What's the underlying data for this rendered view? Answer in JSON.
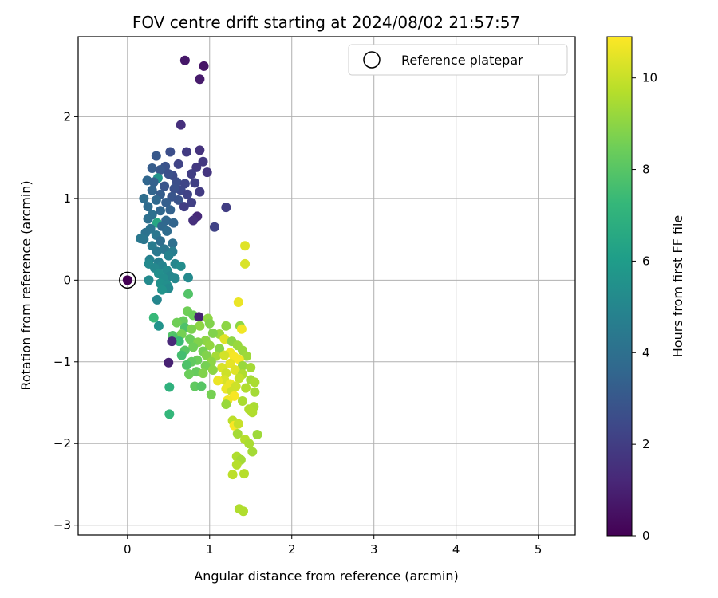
{
  "chart_data": {
    "type": "scatter",
    "title": "FOV centre drift starting at 2024/08/02 21:57:57",
    "xlabel": "Angular distance from reference (arcmin)",
    "ylabel": "Rotation from reference (arcmin)",
    "xlim": [
      -0.6,
      5.45
    ],
    "ylim": [
      -3.12,
      2.98
    ],
    "xticks": [
      "0",
      "1",
      "2",
      "3",
      "4",
      "5"
    ],
    "yticks": [
      "−3",
      "−2",
      "−1",
      "0",
      "1",
      "2"
    ],
    "grid": true,
    "legend": {
      "placement": "top-right",
      "entries": [
        "Reference platepar"
      ]
    },
    "reference_point": {
      "x": 0,
      "y": 0
    },
    "colorbar": {
      "label": "Hours from first FF file",
      "range": [
        0,
        10.9
      ],
      "ticks": [
        "0",
        "2",
        "4",
        "6",
        "8",
        "10"
      ],
      "colormap": "viridis"
    },
    "points": [
      [
        0.7,
        2.69,
        0.7
      ],
      [
        0.93,
        2.62,
        0.6
      ],
      [
        0.88,
        2.46,
        0.8
      ],
      [
        0.65,
        1.9,
        1.5
      ],
      [
        0.88,
        1.59,
        1.6
      ],
      [
        0.72,
        1.57,
        1.9
      ],
      [
        0.52,
        1.57,
        2.6
      ],
      [
        0.35,
        1.52,
        3.0
      ],
      [
        0.92,
        1.45,
        1.8
      ],
      [
        0.46,
        1.39,
        2.8
      ],
      [
        0.84,
        1.38,
        1.8
      ],
      [
        0.62,
        1.42,
        2.2
      ],
      [
        0.3,
        1.37,
        3.2
      ],
      [
        0.4,
        1.35,
        3.0
      ],
      [
        0.97,
        1.32,
        1.7
      ],
      [
        0.78,
        1.3,
        2.0
      ],
      [
        0.55,
        1.28,
        2.5
      ],
      [
        0.5,
        1.3,
        2.7
      ],
      [
        0.37,
        1.25,
        5.6
      ],
      [
        0.24,
        1.22,
        3.6
      ],
      [
        0.32,
        1.2,
        3.4
      ],
      [
        0.6,
        1.2,
        2.6
      ],
      [
        0.7,
        1.18,
        2.3
      ],
      [
        0.82,
        1.19,
        2.1
      ],
      [
        0.65,
        1.1,
        2.4
      ],
      [
        0.45,
        1.15,
        2.9
      ],
      [
        0.57,
        1.12,
        2.7
      ],
      [
        0.3,
        1.1,
        3.5
      ],
      [
        0.73,
        1.05,
        2.2
      ],
      [
        0.88,
        1.08,
        1.9
      ],
      [
        0.4,
        1.05,
        3.2
      ],
      [
        0.54,
        1.02,
        2.9
      ],
      [
        0.62,
        0.98,
        2.8
      ],
      [
        0.2,
        1.0,
        3.9
      ],
      [
        0.35,
        0.98,
        3.7
      ],
      [
        0.47,
        0.95,
        3.3
      ],
      [
        0.78,
        0.95,
        2.1
      ],
      [
        0.69,
        0.9,
        2.0
      ],
      [
        1.2,
        0.89,
        2.0
      ],
      [
        0.25,
        0.9,
        3.8
      ],
      [
        0.4,
        0.85,
        3.6
      ],
      [
        0.52,
        0.86,
        3.4
      ],
      [
        0.3,
        0.8,
        4.0
      ],
      [
        0.85,
        0.78,
        1.3
      ],
      [
        0.8,
        0.73,
        1.5
      ],
      [
        0.47,
        0.73,
        3.6
      ],
      [
        0.25,
        0.75,
        4.0
      ],
      [
        0.36,
        0.7,
        6.5
      ],
      [
        0.56,
        0.7,
        3.5
      ],
      [
        0.42,
        0.66,
        3.7
      ],
      [
        1.06,
        0.65,
        2.2
      ],
      [
        0.28,
        0.63,
        4.2
      ],
      [
        0.48,
        0.6,
        3.8
      ],
      [
        0.22,
        0.58,
        4.1
      ],
      [
        0.35,
        0.55,
        4.3
      ],
      [
        0.16,
        0.51,
        4.4
      ],
      [
        0.2,
        0.5,
        4.3
      ],
      [
        0.4,
        0.48,
        3.9
      ],
      [
        0.55,
        0.45,
        4.0
      ],
      [
        0.3,
        0.42,
        4.5
      ],
      [
        0.45,
        0.38,
        4.3
      ],
      [
        0.55,
        0.35,
        4.6
      ],
      [
        0.36,
        0.35,
        4.4
      ],
      [
        0.5,
        0.3,
        4.8
      ],
      [
        0.27,
        0.25,
        4.8
      ],
      [
        0.38,
        0.22,
        4.7
      ],
      [
        0.26,
        0.2,
        5.2
      ],
      [
        0.42,
        0.18,
        4.9
      ],
      [
        0.58,
        0.2,
        5.0
      ],
      [
        0.65,
        0.17,
        5.3
      ],
      [
        0.33,
        0.15,
        5.1
      ],
      [
        0.48,
        0.12,
        5.2
      ],
      [
        0.38,
        0.08,
        5.4
      ],
      [
        0.52,
        0.05,
        5.0
      ],
      [
        0.44,
        0.02,
        5.3
      ],
      [
        0.26,
        0.0,
        5.2
      ],
      [
        0.58,
        0.02,
        5.1
      ],
      [
        0.74,
        0.03,
        5.2
      ],
      [
        0.4,
        -0.04,
        5.5
      ],
      [
        0.48,
        -0.06,
        5.4
      ],
      [
        0.5,
        -0.1,
        5.2
      ],
      [
        0.42,
        -0.12,
        5.6
      ],
      [
        0.36,
        -0.24,
        5.0
      ],
      [
        1.43,
        0.42,
        10.4
      ],
      [
        1.43,
        0.2,
        10.3
      ],
      [
        1.35,
        -0.27,
        10.6
      ],
      [
        0.0,
        0.0,
        0.0
      ],
      [
        0.74,
        -0.17,
        7.9
      ],
      [
        0.73,
        -0.38,
        8.5
      ],
      [
        0.8,
        -0.43,
        8.4
      ],
      [
        0.87,
        -0.45,
        1.0
      ],
      [
        0.32,
        -0.46,
        7.3
      ],
      [
        0.98,
        -0.47,
        9.0
      ],
      [
        0.68,
        -0.5,
        8.3
      ],
      [
        0.6,
        -0.52,
        8.5
      ],
      [
        1.0,
        -0.53,
        8.8
      ],
      [
        0.88,
        -0.56,
        9.0
      ],
      [
        0.7,
        -0.58,
        7.8
      ],
      [
        0.38,
        -0.56,
        5.6
      ],
      [
        0.78,
        -0.6,
        8.7
      ],
      [
        1.2,
        -0.56,
        9.0
      ],
      [
        1.37,
        -0.56,
        9.0
      ],
      [
        1.39,
        -0.6,
        10.7
      ],
      [
        1.12,
        -0.66,
        9.2
      ],
      [
        1.04,
        -0.65,
        8.8
      ],
      [
        0.66,
        -0.66,
        8.6
      ],
      [
        0.55,
        -0.68,
        7.9
      ],
      [
        0.57,
        -0.72,
        7.8
      ],
      [
        0.76,
        -0.72,
        8.4
      ],
      [
        0.95,
        -0.74,
        9.0
      ],
      [
        0.63,
        -0.75,
        7.4
      ],
      [
        0.86,
        -0.76,
        8.8
      ],
      [
        1.18,
        -0.72,
        10.4
      ],
      [
        1.27,
        -0.75,
        9.0
      ],
      [
        1.34,
        -0.8,
        9.2
      ],
      [
        0.54,
        -0.75,
        1.2
      ],
      [
        1.0,
        -0.8,
        9.1
      ],
      [
        0.8,
        -0.82,
        8.5
      ],
      [
        0.7,
        -0.86,
        8.0
      ],
      [
        0.92,
        -0.87,
        8.6
      ],
      [
        1.12,
        -0.84,
        8.9
      ],
      [
        1.25,
        -0.89,
        10.7
      ],
      [
        1.4,
        -0.86,
        9.2
      ],
      [
        0.96,
        -0.92,
        8.8
      ],
      [
        1.08,
        -0.93,
        9.4
      ],
      [
        0.66,
        -0.92,
        7.6
      ],
      [
        1.18,
        -0.92,
        10.2
      ],
      [
        1.3,
        -0.94,
        10.8
      ],
      [
        1.45,
        -0.93,
        9.3
      ],
      [
        1.36,
        -0.97,
        10.8
      ],
      [
        0.85,
        -0.98,
        8.4
      ],
      [
        0.78,
        -1.0,
        8.2
      ],
      [
        1.02,
        -1.0,
        9.0
      ],
      [
        1.25,
        -1.02,
        10.5
      ],
      [
        0.72,
        -1.04,
        7.8
      ],
      [
        0.5,
        -1.01,
        1.0
      ],
      [
        0.95,
        -1.05,
        8.6
      ],
      [
        1.15,
        -1.07,
        10.3
      ],
      [
        1.4,
        -1.05,
        9.2
      ],
      [
        1.5,
        -1.07,
        9.4
      ],
      [
        1.04,
        -1.1,
        9.0
      ],
      [
        0.84,
        -1.12,
        8.3
      ],
      [
        1.31,
        -1.1,
        10.4
      ],
      [
        0.75,
        -1.15,
        8.4
      ],
      [
        1.2,
        -1.14,
        10.1
      ],
      [
        1.4,
        -1.15,
        9.6
      ],
      [
        0.92,
        -1.14,
        8.8
      ],
      [
        1.36,
        -1.2,
        9.9
      ],
      [
        1.18,
        -1.22,
        10.3
      ],
      [
        1.1,
        -1.23,
        10.6
      ],
      [
        1.5,
        -1.22,
        9.4
      ],
      [
        1.55,
        -1.25,
        9.5
      ],
      [
        1.25,
        -1.27,
        10.6
      ],
      [
        0.82,
        -1.3,
        8.2
      ],
      [
        0.9,
        -1.3,
        8.0
      ],
      [
        1.32,
        -1.3,
        10.1
      ],
      [
        1.2,
        -1.33,
        10.6
      ],
      [
        1.44,
        -1.32,
        9.6
      ],
      [
        1.27,
        -1.36,
        10.1
      ],
      [
        1.55,
        -1.37,
        9.4
      ],
      [
        1.02,
        -1.4,
        8.6
      ],
      [
        1.3,
        -1.42,
        10.8
      ],
      [
        0.51,
        -1.31,
        7.0
      ],
      [
        1.22,
        -1.47,
        10.7
      ],
      [
        1.4,
        -1.48,
        9.5
      ],
      [
        1.2,
        -1.52,
        9.2
      ],
      [
        1.54,
        -1.55,
        9.5
      ],
      [
        1.48,
        -1.58,
        9.6
      ],
      [
        1.52,
        -1.62,
        9.6
      ],
      [
        0.51,
        -1.64,
        7.2
      ],
      [
        1.28,
        -1.72,
        9.8
      ],
      [
        1.3,
        -1.78,
        10.8
      ],
      [
        1.35,
        -1.76,
        10.0
      ],
      [
        1.34,
        -1.88,
        9.4
      ],
      [
        1.58,
        -1.89,
        9.3
      ],
      [
        1.43,
        -1.95,
        9.7
      ],
      [
        1.48,
        -2.0,
        9.5
      ],
      [
        1.52,
        -2.1,
        9.4
      ],
      [
        1.33,
        -2.16,
        9.6
      ],
      [
        1.38,
        -2.2,
        9.4
      ],
      [
        1.33,
        -2.26,
        9.7
      ],
      [
        1.28,
        -2.38,
        9.8
      ],
      [
        1.42,
        -2.37,
        9.7
      ],
      [
        1.36,
        -2.8,
        9.6
      ],
      [
        1.41,
        -2.83,
        9.6
      ]
    ]
  }
}
